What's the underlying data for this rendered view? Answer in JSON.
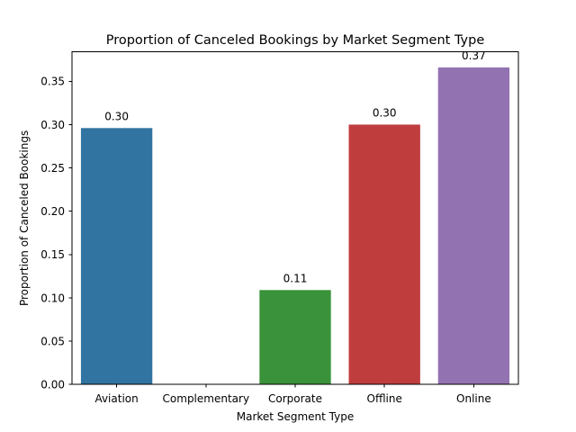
{
  "chart_data": {
    "type": "bar",
    "title": "Proportion of Canceled Bookings by Market Segment Type",
    "xlabel": "Market Segment Type",
    "ylabel": "Proportion of Canceled Bookings",
    "categories": [
      "Aviation",
      "Complementary",
      "Corporate",
      "Offline",
      "Online"
    ],
    "values": [
      0.296,
      0.0,
      0.109,
      0.3,
      0.366
    ],
    "data_labels": [
      "0.30",
      "",
      "0.11",
      "0.30",
      "0.37"
    ],
    "colors": [
      "#3274a1",
      "#e1812c",
      "#3a923a",
      "#c03d3e",
      "#9372b2"
    ],
    "ylim": [
      0,
      0.384
    ],
    "yticks": [
      0.0,
      0.05,
      0.1,
      0.15,
      0.2,
      0.25,
      0.3,
      0.35
    ],
    "ytick_labels": [
      "0.00",
      "0.05",
      "0.10",
      "0.15",
      "0.20",
      "0.25",
      "0.30",
      "0.35"
    ],
    "grid": false,
    "legend": "none"
  }
}
